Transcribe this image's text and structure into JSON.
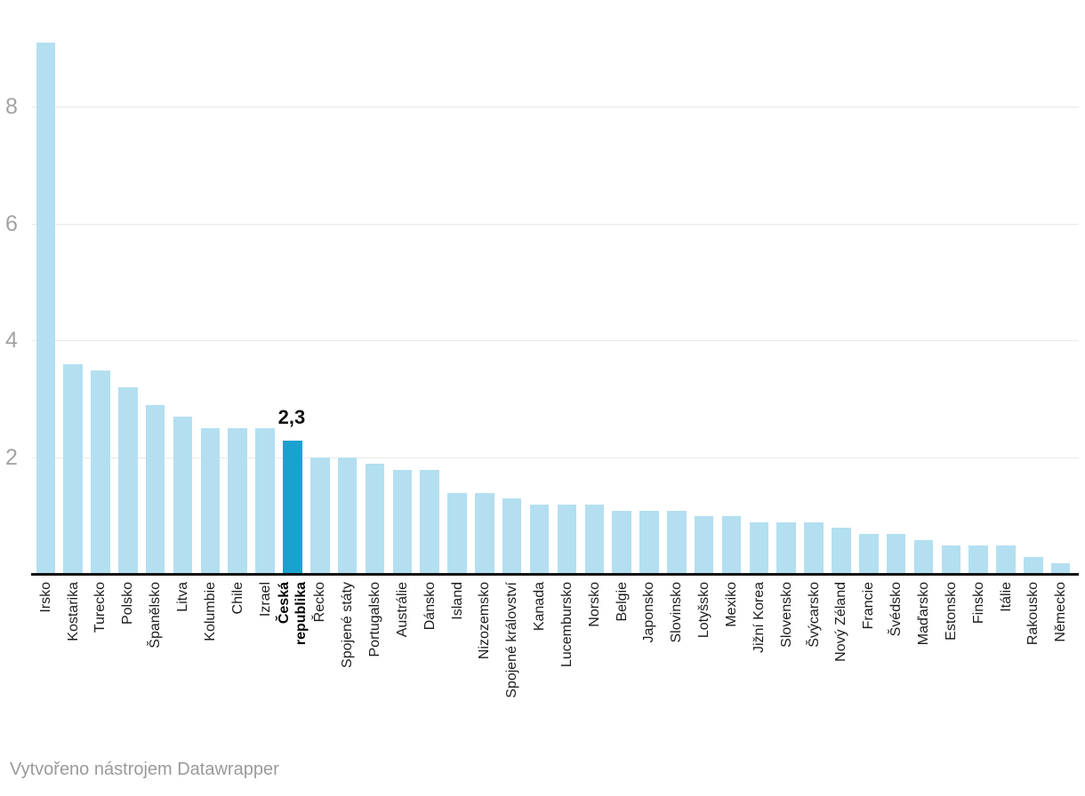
{
  "chart_data": {
    "type": "bar",
    "categories": [
      "Irsko",
      "Kostarika",
      "Turecko",
      "Polsko",
      "Španělsko",
      "Litva",
      "Kolumbie",
      "Chile",
      "Izrael",
      "Česká republika",
      "Řecko",
      "Spojené státy",
      "Portugalsko",
      "Austrálie",
      "Dánsko",
      "Island",
      "Nizozemsko",
      "Spojené království",
      "Kanada",
      "Lucembursko",
      "Norsko",
      "Belgie",
      "Japonsko",
      "Slovinsko",
      "Lotyšsko",
      "Mexiko",
      "Jižní Korea",
      "Slovensko",
      "Švýcarsko",
      "Nový Zéland",
      "Francie",
      "Švédsko",
      "Maďarsko",
      "Estonsko",
      "Finsko",
      "Itálie",
      "Rakousko",
      "Německo"
    ],
    "values": [
      9.1,
      3.6,
      3.5,
      3.2,
      2.9,
      2.7,
      2.5,
      2.5,
      2.5,
      2.3,
      2.0,
      2.0,
      1.9,
      1.8,
      1.8,
      1.4,
      1.4,
      1.3,
      1.2,
      1.2,
      1.2,
      1.1,
      1.1,
      1.1,
      1.0,
      1.0,
      0.9,
      0.9,
      0.9,
      0.8,
      0.7,
      0.7,
      0.6,
      0.5,
      0.5,
      0.5,
      0.3,
      0.2
    ],
    "title": "",
    "xlabel": "",
    "ylabel": "",
    "yticks": [
      2,
      4,
      6,
      8
    ],
    "ylim": [
      0,
      9.3
    ],
    "grid": true,
    "legend": "none",
    "highlight": {
      "category": "Česká republika",
      "label_lines": [
        "Česká",
        "republika"
      ],
      "value_label": "2,3"
    },
    "colors": {
      "bar": "#b3dff0",
      "bar_highlight": "#1aa2cf",
      "gridline": "#e8e8e8",
      "axis_line": "#111111",
      "tick_label": "#a3a3a3",
      "x_label": "#1d1d1d",
      "value_label": "#111111"
    }
  },
  "footer": {
    "attribution": "Vytvořeno nástrojem Datawrapper"
  }
}
